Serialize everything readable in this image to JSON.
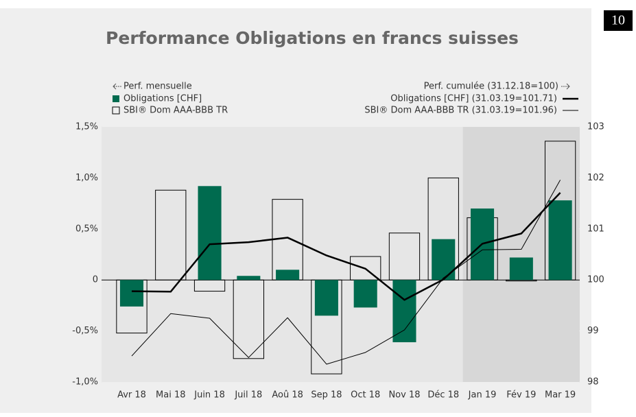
{
  "page_number": "10",
  "chart_data": {
    "type": "bar-line",
    "title": "Performance Obligations en francs suisses",
    "legend_left_title": "Perf. mensuelle",
    "legend_right_title": "Perf. cumulée (31.12.18=100)",
    "categories": [
      "Avr 18",
      "Mai 18",
      "Juin 18",
      "Juil 18",
      "Aoû 18",
      "Sep 18",
      "Oct 18",
      "Nov 18",
      "Déc 18",
      "Jan 19",
      "Fév 19",
      "Mar 19"
    ],
    "series": [
      {
        "name": "SBI® Dom AAA-BBB TR",
        "type": "bar",
        "style": "outline",
        "color": "#000000",
        "axis": "y",
        "values": [
          -0.52,
          0.88,
          -0.11,
          -0.77,
          0.79,
          -0.92,
          0.23,
          0.46,
          1.0,
          0.61,
          -0.01,
          1.36
        ]
      },
      {
        "name": "Obligations [CHF]",
        "type": "bar",
        "style": "filled",
        "color": "#006b4f",
        "axis": "y",
        "values": [
          -0.26,
          0,
          0.92,
          0.04,
          0.1,
          -0.35,
          -0.27,
          -0.61,
          0.4,
          0.7,
          0.22,
          0.78
        ]
      },
      {
        "name": "Obligations [CHF] (31.03.19=101.71)",
        "type": "line",
        "color": "#000000",
        "width": 2.5,
        "axis": "y2",
        "values": [
          99.78,
          99.77,
          100.7,
          100.74,
          100.83,
          100.48,
          100.22,
          99.61,
          100.01,
          100.71,
          100.91,
          101.71
        ]
      },
      {
        "name": "SBI® Dom AAA-BBB TR (31.03.19=101.96)",
        "type": "line",
        "color": "#000000",
        "width": 1,
        "axis": "y2",
        "values": [
          98.51,
          99.34,
          99.25,
          98.48,
          99.26,
          98.35,
          98.58,
          99.02,
          100.04,
          100.59,
          100.6,
          101.96
        ]
      }
    ],
    "ylim": [
      -1.0,
      1.5
    ],
    "yticks": [
      {
        "value": -1.0,
        "label": "-1,0%"
      },
      {
        "value": -0.5,
        "label": "-0,5%"
      },
      0,
      {
        "value": 0.5,
        "label": "0,5%"
      },
      {
        "value": 1.0,
        "label": "1,0%"
      },
      {
        "value": 1.5,
        "label": "1,5%"
      }
    ],
    "y2lim": [
      98,
      103
    ],
    "y2ticks": [
      98,
      99,
      100,
      101,
      102,
      103
    ],
    "shaded_categories": [
      9,
      11
    ]
  }
}
